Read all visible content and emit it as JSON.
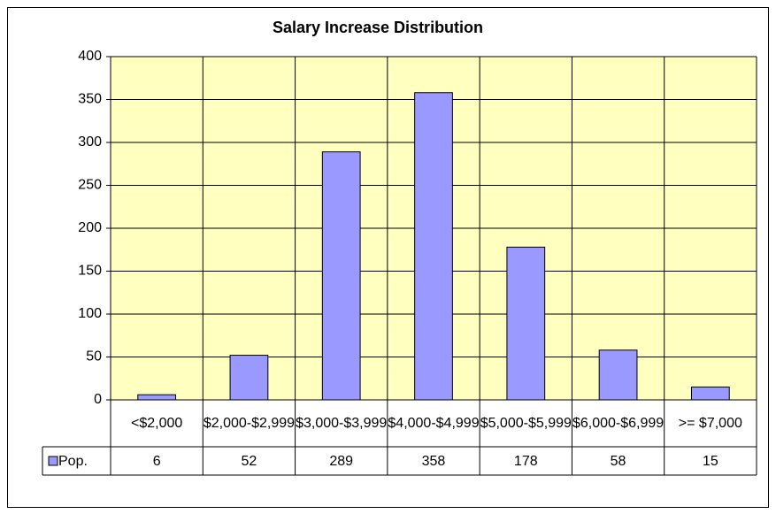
{
  "chart_data": {
    "type": "bar",
    "title": "Salary Increase Distribution",
    "categories": [
      "<$2,000",
      "$2,000-$2,999",
      "$3,000-$3,999",
      "$4,000-$4,999",
      "$5,000-$5,999",
      "$6,000-$6,999",
      ">= $7,000"
    ],
    "series": [
      {
        "name": "Pop.",
        "color": "#9999ff",
        "values": [
          6,
          52,
          289,
          358,
          178,
          58,
          15
        ]
      }
    ],
    "ylim": [
      0,
      400
    ],
    "yticks": [
      0,
      50,
      100,
      150,
      200,
      250,
      300,
      350,
      400
    ],
    "grid": true,
    "plot_background": "#ffffc0"
  }
}
